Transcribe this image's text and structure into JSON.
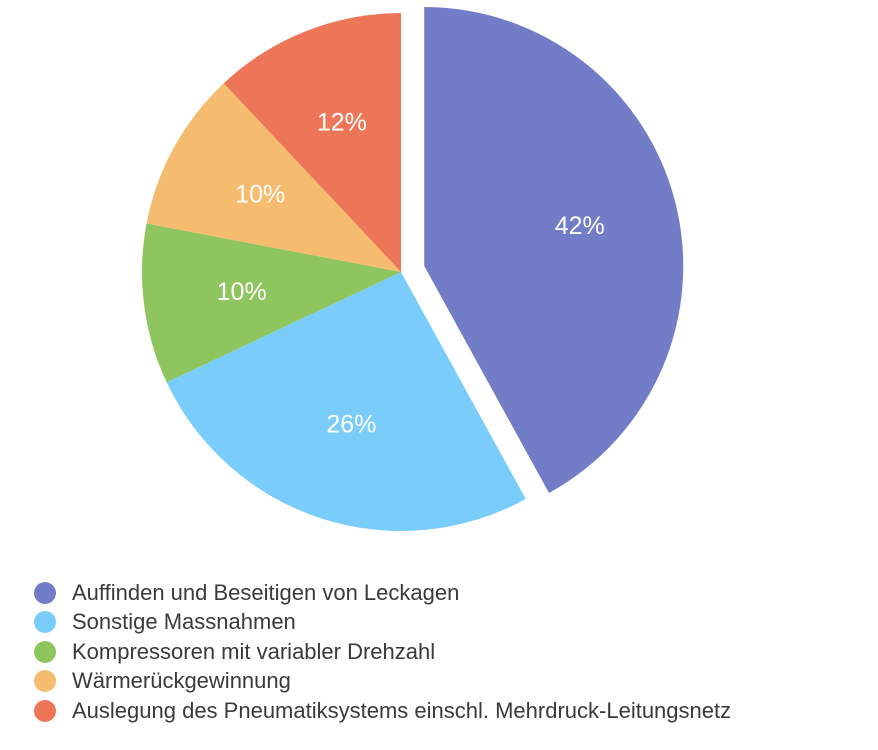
{
  "chart_data": {
    "type": "pie",
    "categories": [
      "Auffinden und Beseitigen von Leckagen",
      "Sonstige Massnahmen",
      "Kompressoren mit variabler Drehzahl",
      "Wärmerückgewinnung",
      "Auslegung des Pneumatiksystems einschl. Mehrdruck-Leitungsnetz"
    ],
    "values": [
      42,
      26,
      10,
      10,
      12
    ],
    "data_labels": [
      "42%",
      "26%",
      "10%",
      "10%",
      "12%"
    ],
    "colors": [
      "#727cc7",
      "#7acdfa",
      "#8ec55f",
      "#f5bc70",
      "#ee7658"
    ],
    "exploded_slice": 0,
    "start_angle_deg": 0,
    "direction": "clockwise",
    "legend_position": "bottom-left",
    "title": ""
  }
}
